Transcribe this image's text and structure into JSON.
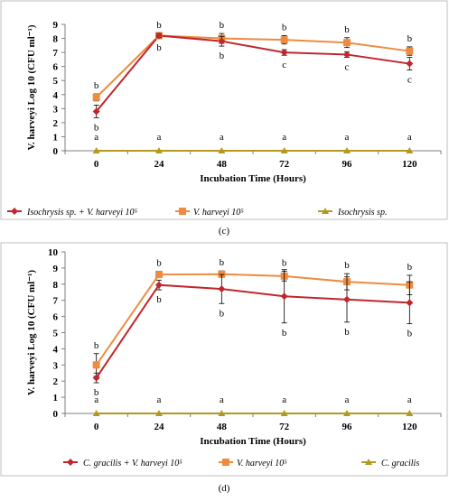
{
  "chart_data": [
    {
      "panel": "(c)",
      "type": "line",
      "x_tick_labels": [
        "0",
        "24",
        "48",
        "72",
        "96",
        "120"
      ],
      "ylabel": "V. harveyi  Log 10 (CFU ml⁻¹)",
      "xlabel": "Incubation Time (Hours)",
      "ylim": [
        0,
        9
      ],
      "yticks": [
        0,
        1,
        2,
        3,
        4,
        5,
        6,
        7,
        8,
        9
      ],
      "grid": false,
      "legend_position": "bottom",
      "series": [
        {
          "name": "Isochrysis sp. + V. harveyi 10⁵",
          "color": "#C0272D",
          "marker": "diamond",
          "values": [
            2.8,
            8.2,
            7.8,
            7.0,
            6.85,
            6.2
          ],
          "errors": [
            0.45,
            0.15,
            0.35,
            0.2,
            0.2,
            0.45
          ],
          "labels": [
            "b",
            "b",
            "b",
            "c",
            "c",
            "c"
          ],
          "label_pos": "below"
        },
        {
          "name": "V. harveyi 10⁵",
          "color": "#ED8C40",
          "marker": "square",
          "values": [
            3.8,
            8.2,
            8.0,
            7.9,
            7.7,
            7.1
          ],
          "errors": [
            0.25,
            0.15,
            0.35,
            0.3,
            0.35,
            0.3
          ],
          "labels": [
            "b",
            "b",
            "b",
            "b",
            "b",
            "b"
          ],
          "label_pos": "above"
        },
        {
          "name": "Isochrysis sp.",
          "color": "#B39A1F",
          "marker": "triangle",
          "values": [
            0,
            0,
            0,
            0,
            0,
            0
          ],
          "errors": [
            0,
            0,
            0,
            0,
            0,
            0
          ],
          "labels": [
            "a",
            "a",
            "a",
            "a",
            "a",
            "a"
          ],
          "label_pos": "above"
        }
      ]
    },
    {
      "panel": "(d)",
      "type": "line",
      "x_tick_labels": [
        "0",
        "24",
        "48",
        "72",
        "96",
        "120"
      ],
      "ylabel": "V. harveyi  Log 10 (CFU ml⁻¹)",
      "xlabel": "Incubation Time (Hours)",
      "ylim": [
        0,
        10
      ],
      "yticks": [
        0,
        1,
        2,
        3,
        4,
        5,
        6,
        7,
        8,
        9,
        10
      ],
      "grid": false,
      "legend_position": "bottom",
      "series": [
        {
          "name": "C. gracilis + V. harveyi 10⁵",
          "color": "#C0272D",
          "marker": "diamond",
          "values": [
            2.2,
            7.95,
            7.7,
            7.25,
            7.05,
            6.85
          ],
          "errors": [
            0.3,
            0.3,
            0.9,
            1.65,
            1.4,
            1.3
          ],
          "labels": [
            "b",
            "b",
            "b",
            "b",
            "b",
            "b"
          ],
          "label_pos": "below"
        },
        {
          "name": "V. harveyi 10⁵",
          "color": "#ED8C40",
          "marker": "square",
          "values": [
            3.0,
            8.6,
            8.62,
            8.5,
            8.15,
            7.95
          ],
          "errors": [
            0.7,
            0.2,
            0.2,
            0.3,
            0.5,
            0.6
          ],
          "labels": [
            "b",
            "b",
            "b",
            "b",
            "b",
            "b"
          ],
          "label_pos": "above"
        },
        {
          "name": "C. gracilis",
          "color": "#B39A1F",
          "marker": "triangle",
          "values": [
            0,
            0,
            0,
            0,
            0,
            0
          ],
          "errors": [
            0,
            0,
            0,
            0,
            0,
            0
          ],
          "labels": [
            "a",
            "a",
            "a",
            "a",
            "a",
            "a"
          ],
          "label_pos": "above"
        }
      ]
    }
  ],
  "captions": [
    "(c)",
    "(d)"
  ]
}
